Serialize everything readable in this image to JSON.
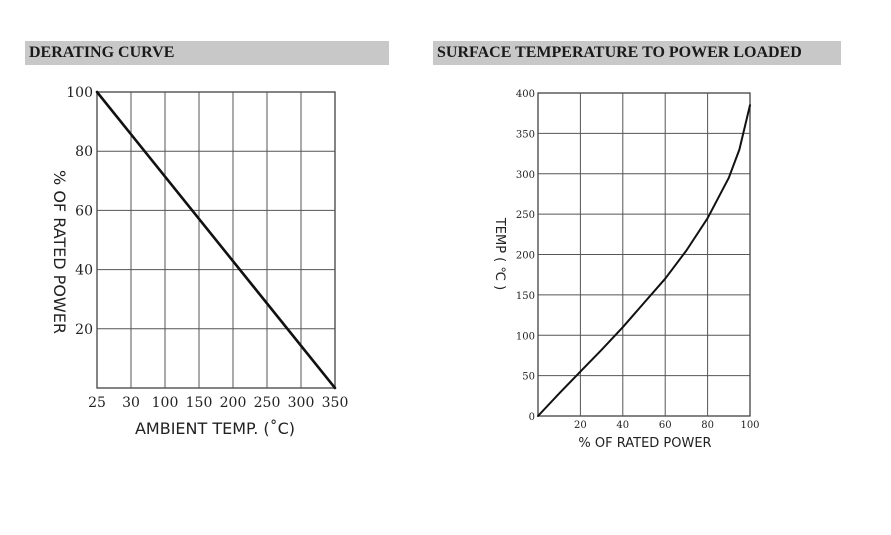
{
  "panels": {
    "left_title": "DERATING CURVE",
    "right_title": "SURFACE TEMPERATURE TO POWER LOADED"
  },
  "chart_data": [
    {
      "type": "line",
      "title": "DERATING CURVE",
      "xlabel": "AMBIENT TEMP. (˚C)",
      "ylabel": "% OF RATED POWER",
      "x_tick_labels": [
        "25",
        "30",
        "100",
        "150",
        "200",
        "250",
        "300",
        "350"
      ],
      "y_tick_labels": [
        "20",
        "40",
        "60",
        "80",
        "100"
      ],
      "y_ticks": [
        20,
        40,
        60,
        80,
        100
      ],
      "ylim": [
        0,
        100
      ],
      "grid": true,
      "series": [
        {
          "x": [
            "25",
            "350"
          ],
          "y": [
            100,
            0
          ]
        }
      ]
    },
    {
      "type": "line",
      "title": "SURFACE TEMPERATURE TO POWER LOADED",
      "xlabel": "% OF RATED POWER",
      "ylabel": "TEMP ( ℃ )",
      "x_ticks": [
        20,
        40,
        60,
        80,
        100
      ],
      "y_ticks": [
        0,
        50,
        100,
        150,
        200,
        250,
        300,
        350,
        400
      ],
      "xlim": [
        0,
        100
      ],
      "ylim": [
        0,
        400
      ],
      "grid": true,
      "series": [
        {
          "x": [
            0,
            10,
            20,
            30,
            40,
            50,
            60,
            70,
            80,
            90,
            95,
            100
          ],
          "y": [
            0,
            28,
            55,
            82,
            110,
            140,
            170,
            205,
            245,
            295,
            330,
            385
          ]
        }
      ]
    }
  ]
}
